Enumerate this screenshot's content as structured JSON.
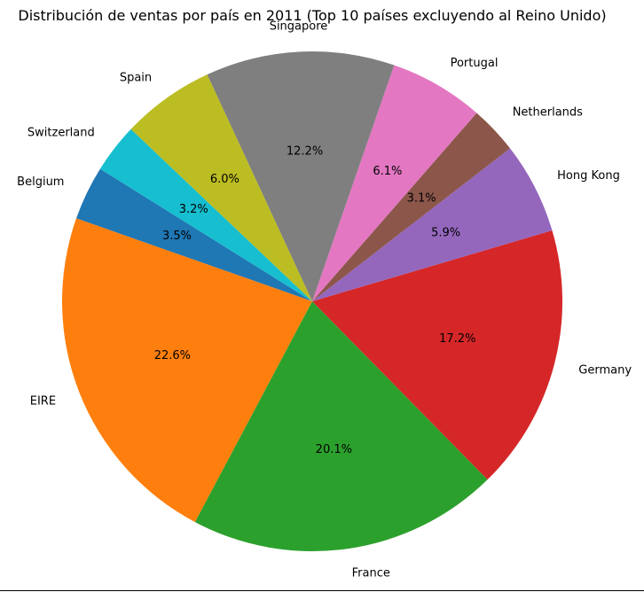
{
  "chart_data": {
    "type": "pie",
    "title": "Distribución de ventas por país en 2011 (Top 10 países excluyendo al Reino Unido)",
    "start_angle_deg": 148,
    "direction": "counterclockwise",
    "slices": [
      {
        "label": "Belgium",
        "value": 3.5,
        "pct_label": "3.5%",
        "color": "#1f77b4"
      },
      {
        "label": "EIRE",
        "value": 22.6,
        "pct_label": "22.6%",
        "color": "#ff7f0e"
      },
      {
        "label": "France",
        "value": 20.1,
        "pct_label": "20.1%",
        "color": "#2ca02c"
      },
      {
        "label": "Germany",
        "value": 17.2,
        "pct_label": "17.2%",
        "color": "#d62728"
      },
      {
        "label": "Hong Kong",
        "value": 5.9,
        "pct_label": "5.9%",
        "color": "#9467bd"
      },
      {
        "label": "Netherlands",
        "value": 3.1,
        "pct_label": "3.1%",
        "color": "#8c564b"
      },
      {
        "label": "Portugal",
        "value": 6.1,
        "pct_label": "6.1%",
        "color": "#e377c2"
      },
      {
        "label": "Singapore",
        "value": 12.2,
        "pct_label": "12.2%",
        "color": "#7f7f7f"
      },
      {
        "label": "Spain",
        "value": 6.0,
        "pct_label": "6.0%",
        "color": "#bcbd22"
      },
      {
        "label": "Switzerland",
        "value": 3.2,
        "pct_label": "3.2%",
        "color": "#17becf"
      }
    ]
  }
}
